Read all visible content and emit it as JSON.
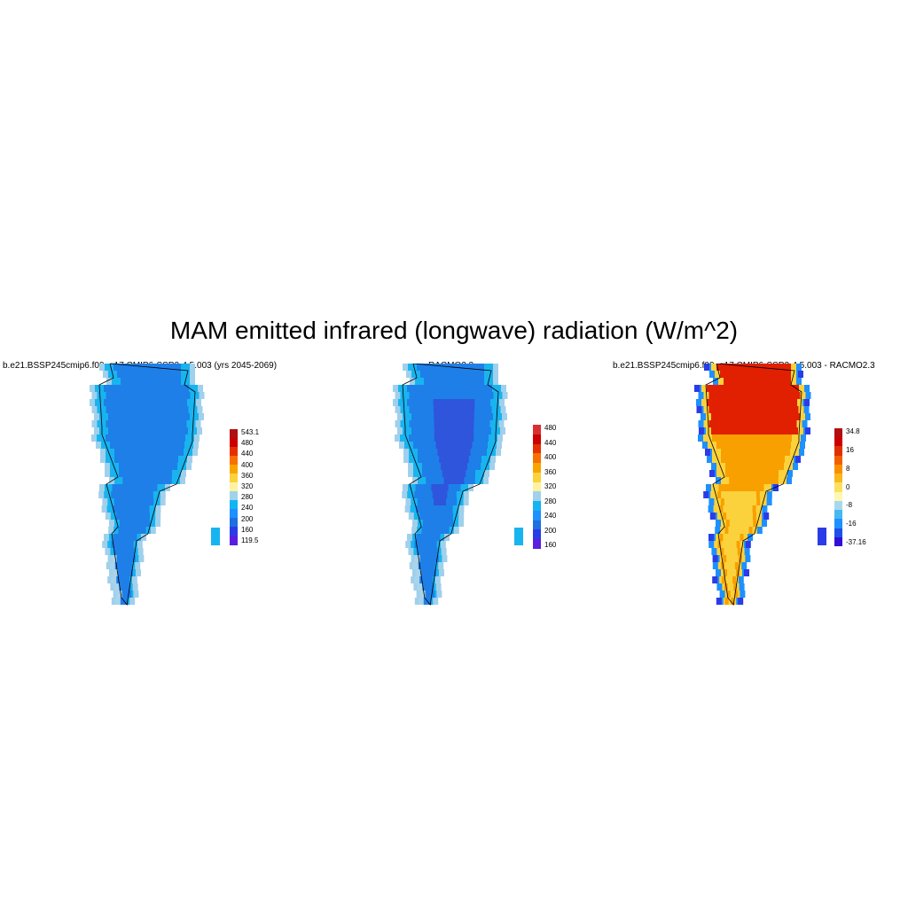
{
  "title": "MAM emitted infrared (longwave) radiation (W/m^2)",
  "panels": [
    {
      "id": "model",
      "title": "b.e21.BSSP245cmip6.f09_g17.CMIP6-SSP2-4.5.003 (yrs 2045-2069)",
      "colorbar": {
        "colors": [
          "#5a1ee0",
          "#2a3ce8",
          "#1e6fe0",
          "#1e90ff",
          "#14b4f0",
          "#a0d2ee",
          "#fff2a0",
          "#fcd23c",
          "#f8a500",
          "#f87000",
          "#e63000",
          "#cc0000",
          "#b01010"
        ],
        "labels": [
          "543.1",
          "480",
          "440",
          "400",
          "360",
          "320",
          "280",
          "240",
          "200",
          "160",
          "119.5"
        ]
      },
      "fields": {
        "icesheet": "#1e7fe8",
        "coast": "#18b4f0",
        "margin": "#a0d0ec",
        "south": "#a8d4ec"
      }
    },
    {
      "id": "obs",
      "title": "RACMO2.3",
      "colorbar": {
        "colors": [
          "#5a1ee0",
          "#2a3ce8",
          "#1e6fe0",
          "#1e90ff",
          "#14b4f0",
          "#a0d2ee",
          "#fff2a0",
          "#fcd23c",
          "#f8a500",
          "#f87000",
          "#e63000",
          "#cc0000",
          "#d83030"
        ],
        "labels": [
          "480",
          "440",
          "400",
          "360",
          "320",
          "280",
          "240",
          "200",
          "160"
        ]
      },
      "fields": {
        "icesheet": "#1e7fe8",
        "interior": "#2e55dc",
        "coast": "#18b4f0",
        "margin": "#a0d0ec",
        "south": "#a8d4ec"
      }
    },
    {
      "id": "diff",
      "title": "b.e21.BSSP245cmip6.f09_g17.CMIP6-SSP2-4.5.003 - RACMO2.3",
      "colorbar": {
        "colors": [
          "#3010d8",
          "#1e50e8",
          "#1e90ff",
          "#48b8f0",
          "#a8d8f0",
          "#fff8b0",
          "#fce060",
          "#fcb81c",
          "#f89000",
          "#f06000",
          "#e03000",
          "#cc0000",
          "#b01010"
        ],
        "labels": [
          "34.8",
          "16",
          "8",
          "0",
          "-8",
          "-16",
          "-37.16"
        ]
      },
      "fields": {
        "icesheet": "#f8a000",
        "north": "#e02000",
        "coast": "#fcd23c",
        "margin": "#1e90ff",
        "edge": "#2a3ce8"
      }
    }
  ]
}
